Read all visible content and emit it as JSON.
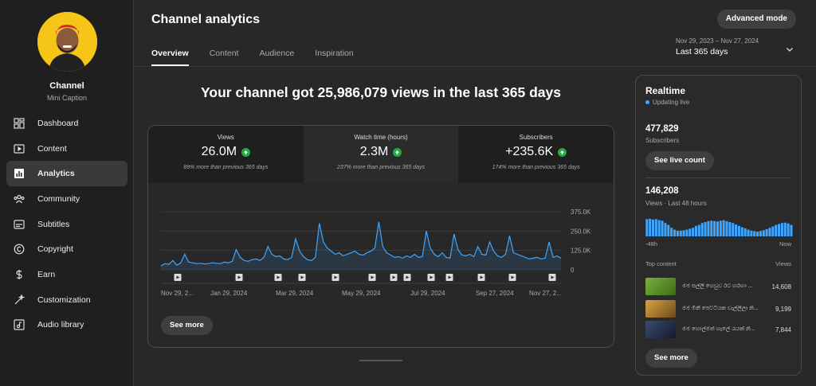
{
  "sidebar": {
    "channel_name": "Channel",
    "channel_caption": "Mini Caption",
    "items": [
      {
        "label": "Dashboard",
        "icon": "dashboard-icon"
      },
      {
        "label": "Content",
        "icon": "content-icon"
      },
      {
        "label": "Analytics",
        "icon": "analytics-icon",
        "active": true
      },
      {
        "label": "Community",
        "icon": "community-icon"
      },
      {
        "label": "Subtitles",
        "icon": "subtitles-icon"
      },
      {
        "label": "Copyright",
        "icon": "copyright-icon"
      },
      {
        "label": "Earn",
        "icon": "earn-icon"
      },
      {
        "label": "Customization",
        "icon": "customization-icon"
      },
      {
        "label": "Audio library",
        "icon": "audio-library-icon"
      }
    ]
  },
  "header": {
    "title": "Channel analytics",
    "advanced_mode": "Advanced mode",
    "tabs": [
      "Overview",
      "Content",
      "Audience",
      "Inspiration"
    ],
    "date_range": "Nov 29, 2023 – Nov 27, 2024",
    "date_label": "Last 365 days"
  },
  "headline": "Your channel got 25,986,079 views in the last 365 days",
  "metrics": [
    {
      "label": "Views",
      "value": "26.0M",
      "note": "89% more than previous 365 days"
    },
    {
      "label": "Watch time (hours)",
      "value": "2.3M",
      "note": "237% more than previous 365 days"
    },
    {
      "label": "Subscribers",
      "value": "+235.6K",
      "note": "174% more than previous 365 days"
    }
  ],
  "see_more": "See more",
  "colors": {
    "line": "#3ea6ff",
    "positive": "#2ba640",
    "live": "#3ea6ff"
  },
  "chart_data": {
    "type": "line",
    "x_tick_labels": [
      "Nov 29, 2...",
      "Jan 29, 2024",
      "Mar 29, 2024",
      "May 29, 2024",
      "Jul 29, 2024",
      "Sep 27, 2024",
      "Nov 27, 2..."
    ],
    "y_tick_labels": [
      "375.0K",
      "250.0K",
      "125.0K",
      "0"
    ],
    "ylim": [
      0,
      375000
    ],
    "grid": true,
    "series": [
      {
        "values": [
          25000,
          40000,
          35000,
          60000,
          30000,
          45000,
          100000,
          50000,
          45000,
          40000,
          42000,
          38000,
          40000,
          45000,
          42000,
          40000,
          50000,
          45000,
          55000,
          130000,
          80000,
          60000,
          55000,
          65000,
          70000,
          60000,
          80000,
          150000,
          100000,
          85000,
          90000,
          70000,
          65000,
          80000,
          200000,
          120000,
          85000,
          65000,
          60000,
          80000,
          300000,
          180000,
          140000,
          120000,
          100000,
          110000,
          90000,
          100000,
          110000,
          120000,
          100000,
          95000,
          110000,
          120000,
          140000,
          310000,
          150000,
          110000,
          95000,
          80000,
          85000,
          75000,
          90000,
          80000,
          100000,
          80000,
          85000,
          250000,
          140000,
          100000,
          85000,
          110000,
          80000,
          75000,
          230000,
          130000,
          95000,
          90000,
          100000,
          85000,
          150000,
          100000,
          95000,
          180000,
          120000,
          90000,
          80000,
          100000,
          220000,
          110000,
          100000,
          90000,
          80000,
          70000,
          75000,
          80000,
          70000,
          75000,
          180000,
          80000,
          90000,
          75000
        ]
      }
    ]
  },
  "realtime": {
    "title": "Realtime",
    "status": "Updating live",
    "subscribers_value": "477,829",
    "subscribers_label": "Subscribers",
    "see_live": "See live count",
    "views_value": "146,208",
    "views_label": "Views · Last 48 hours",
    "axis_start": "-48h",
    "axis_end": "Now",
    "bars": [
      0.9,
      0.92,
      0.88,
      0.9,
      0.85,
      0.82,
      0.7,
      0.6,
      0.45,
      0.35,
      0.3,
      0.3,
      0.32,
      0.35,
      0.4,
      0.45,
      0.55,
      0.6,
      0.7,
      0.75,
      0.8,
      0.82,
      0.8,
      0.78,
      0.82,
      0.85,
      0.8,
      0.75,
      0.7,
      0.62,
      0.55,
      0.48,
      0.42,
      0.35,
      0.3,
      0.28,
      0.25,
      0.28,
      0.32,
      0.38,
      0.45,
      0.52,
      0.6,
      0.65,
      0.7,
      0.72,
      0.68,
      0.6
    ],
    "top_content_label": "Top content",
    "views_col_label": "Views",
    "top_content": [
      {
        "title": "මම සල්ලි හෙවුව රට හරහා ...",
        "views": "14,608",
        "thumb_color": "#5a8f2a"
      },
      {
        "title": "මම මිනී පෙට්ටියක වැල්ලිලා නි...",
        "views": "9,199",
        "thumb_color": "#b8862f"
      },
      {
        "title": "මම හොල්මන් හැලේ රැයක් නි...",
        "views": "7,844",
        "thumb_color": "#2d3a55"
      }
    ],
    "see_more": "See more"
  }
}
